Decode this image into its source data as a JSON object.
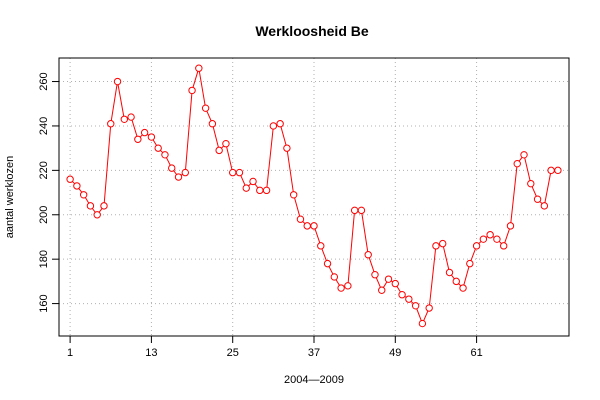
{
  "chart_data": {
    "type": "line",
    "title": "Werkloosheid Be",
    "xlabel": "2004—2009",
    "ylabel": "aantal werklozen",
    "x_ticks": [
      1,
      13,
      25,
      37,
      49,
      61
    ],
    "y_ticks": [
      160,
      180,
      200,
      220,
      240,
      260
    ],
    "xlim": [
      -0.64,
      74.64
    ],
    "ylim": [
      145.4,
      270.6
    ],
    "grid": true,
    "series": [
      {
        "color": "#ff0000",
        "marker": "open-circle",
        "x": [
          1,
          2,
          3,
          4,
          5,
          6,
          7,
          8,
          9,
          10,
          11,
          12,
          13,
          14,
          15,
          16,
          17,
          18,
          19,
          20,
          21,
          22,
          23,
          24,
          25,
          26,
          27,
          28,
          29,
          30,
          31,
          32,
          33,
          34,
          35,
          36,
          37,
          38,
          39,
          40,
          41,
          42,
          43,
          44,
          45,
          46,
          47,
          48,
          49,
          50,
          51,
          52,
          53,
          54,
          55,
          56,
          57,
          58,
          59,
          60,
          61,
          62,
          63,
          64,
          65,
          66,
          67,
          68,
          69,
          70,
          71,
          72,
          73
        ],
        "values": [
          216,
          213,
          209,
          204,
          200,
          204,
          241,
          260,
          243,
          244,
          234,
          237,
          235,
          230,
          227,
          221,
          217,
          219,
          256,
          266,
          248,
          241,
          229,
          232,
          219,
          219,
          212,
          215,
          211,
          211,
          240,
          241,
          230,
          209,
          198,
          195,
          195,
          186,
          178,
          172,
          167,
          168,
          202,
          202,
          182,
          173,
          166,
          171,
          169,
          164,
          162,
          159,
          151,
          158,
          186,
          187,
          174,
          170,
          167,
          178,
          186,
          189,
          191,
          189,
          186,
          195,
          223,
          227,
          214,
          207,
          204,
          220,
          220
        ]
      }
    ]
  }
}
